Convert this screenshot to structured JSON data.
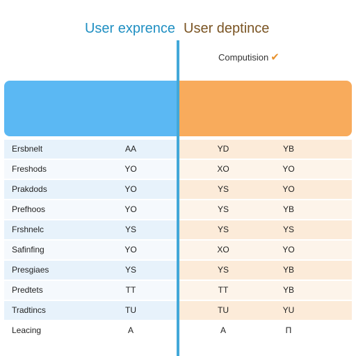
{
  "header": {
    "left_title": "User exprence",
    "right_title": "User deptince",
    "right_subtitle": "Computision",
    "check_icon": "check-icon"
  },
  "colors": {
    "left_accent": "#5bb8f3",
    "right_accent": "#f8ab5c",
    "divider": "#42a8d9",
    "left_title": "#1f8fc2",
    "right_title": "#7a5423"
  },
  "rows": [
    {
      "label": "Ersbnelt",
      "a": "AA",
      "b": "YD",
      "c": "YB"
    },
    {
      "label": "Freshods",
      "a": "YO",
      "b": "XO",
      "c": "YO"
    },
    {
      "label": "Prakdods",
      "a": "YO",
      "b": "YS",
      "c": "YO"
    },
    {
      "label": "Prefhoos",
      "a": "YO",
      "b": "YS",
      "c": "YB"
    },
    {
      "label": "Frshnelc",
      "a": "YS",
      "b": "YS",
      "c": "YS"
    },
    {
      "label": "Safinfing",
      "a": "YO",
      "b": "XO",
      "c": "YO"
    },
    {
      "label": "Presgiaes",
      "a": "YS",
      "b": "YS",
      "c": "YB"
    },
    {
      "label": "Predtets",
      "a": "TT",
      "b": "TT",
      "c": "YB"
    },
    {
      "label": "Tradtincs",
      "a": "TU",
      "b": "TU",
      "c": "YU"
    },
    {
      "label": "Leacing",
      "a": "A",
      "b": "A",
      "c": "Π"
    }
  ]
}
